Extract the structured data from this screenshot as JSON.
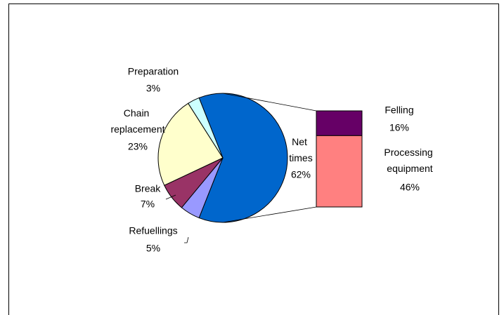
{
  "chart_data": {
    "type": "pie",
    "categories": [
      "Net times",
      "Refuellings",
      "Break",
      "Chain replacement",
      "Preparation"
    ],
    "values": [
      62,
      5,
      7,
      23,
      3
    ],
    "value_labels": [
      "62%",
      "5%",
      "7%",
      "23%",
      "3%"
    ],
    "colors": [
      "#0066cc",
      "#9999ff",
      "#993366",
      "#ffffcc",
      "#ccffff"
    ],
    "bar": {
      "categories": [
        "Felling",
        "Processing equipment"
      ],
      "values": [
        16,
        46
      ],
      "value_labels": [
        "16%",
        "46%"
      ],
      "colors": [
        "#660066",
        "#ff8080"
      ]
    }
  }
}
